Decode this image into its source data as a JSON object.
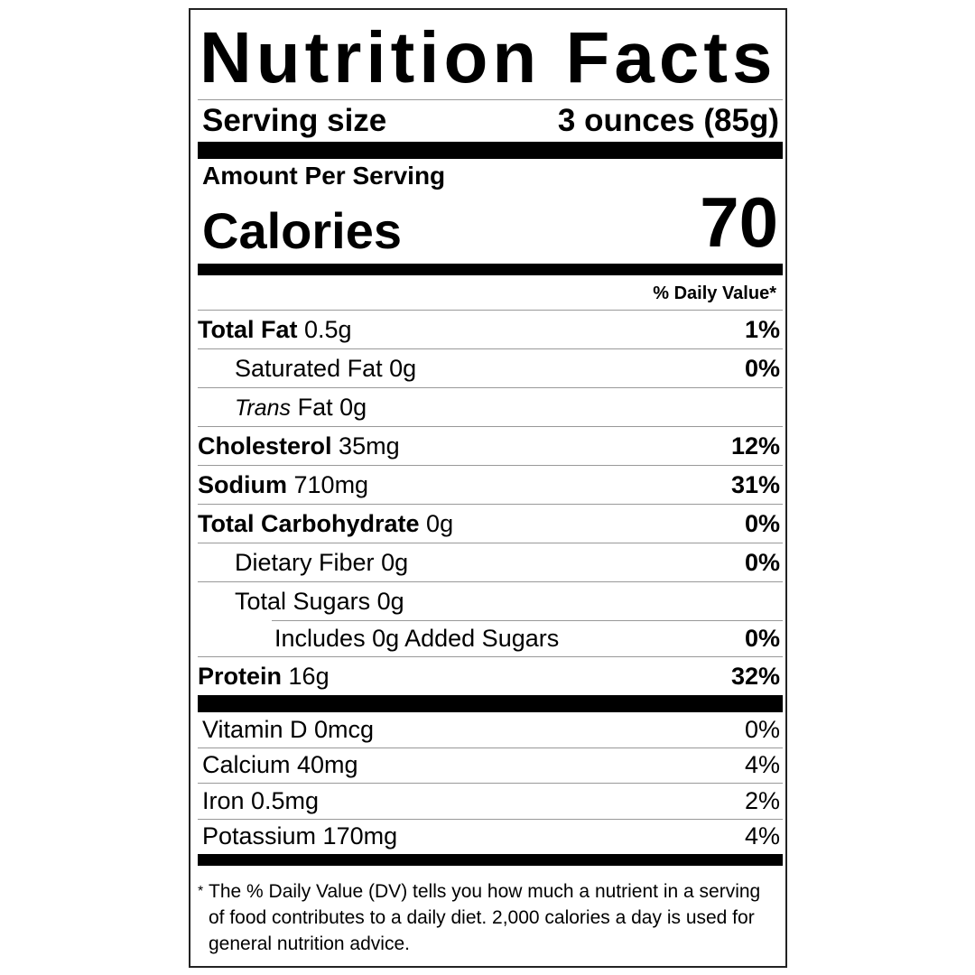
{
  "title": "Nutrition Facts",
  "serving": {
    "label": "Serving size",
    "value": "3 ounces (85g)"
  },
  "amount_per_serving": "Amount Per Serving",
  "calories": {
    "label": "Calories",
    "value": "70"
  },
  "daily_value_header": "% Daily Value*",
  "nutrients": [
    {
      "name": "Total Fat",
      "amount": "0.5g",
      "dv": "1%"
    },
    {
      "name": "Saturated Fat",
      "amount": "0g",
      "dv": "0%"
    },
    {
      "name": "Trans",
      "name_suffix": "Fat",
      "amount": "0g",
      "dv": ""
    },
    {
      "name": "Cholesterol",
      "amount": "35mg",
      "dv": "12%"
    },
    {
      "name": "Sodium",
      "amount": "710mg",
      "dv": "31%"
    },
    {
      "name": "Total Carbohydrate",
      "amount": "0g",
      "dv": "0%"
    },
    {
      "name": "Dietary Fiber",
      "amount": "0g",
      "dv": "0%"
    },
    {
      "name": "Total Sugars",
      "amount": "0g",
      "dv": ""
    },
    {
      "name": "Includes 0g Added Sugars",
      "amount": "",
      "dv": "0%"
    },
    {
      "name": "Protein",
      "amount": "16g",
      "dv": "32%"
    }
  ],
  "vitamins": [
    {
      "name": "Vitamin D 0mcg",
      "dv": "0%"
    },
    {
      "name": "Calcium 40mg",
      "dv": "4%"
    },
    {
      "name": "Iron 0.5mg",
      "dv": "2%"
    },
    {
      "name": "Potassium 170mg",
      "dv": "4%"
    }
  ],
  "footnote": {
    "star": "*",
    "text": "The % Daily Value (DV) tells you how much a nutrient in a serving of food contributes to a daily diet. 2,000 calories a day is used for general nutrition advice."
  }
}
